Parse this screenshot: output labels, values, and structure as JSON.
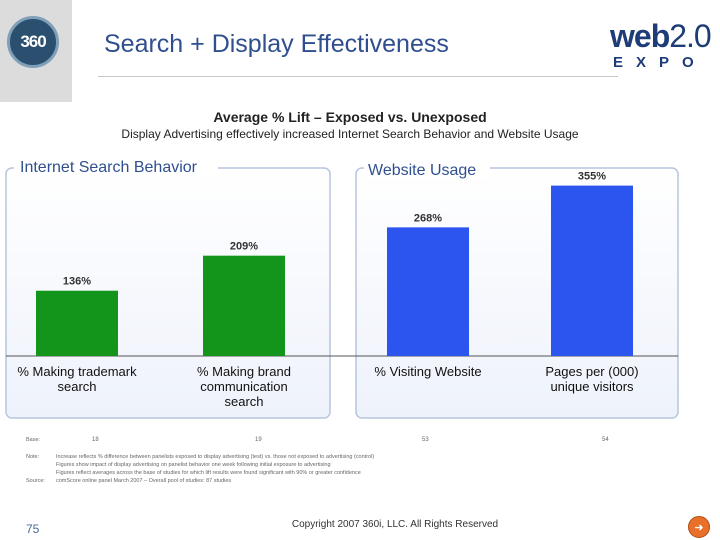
{
  "slide": {
    "title": "Search + Display Effectiveness",
    "page_number": "75",
    "copyright": "Copyright 2007 360i, LLC. All Rights Reserved",
    "logo_left_text": "360",
    "logo_right_line1": "web",
    "logo_right_line1_num": "2.0",
    "logo_right_line2": "EXPO"
  },
  "chart_data": {
    "type": "bar",
    "title": "Average % Lift – Exposed vs. Unexposed",
    "subtitle": "Display Advertising effectively increased Internet Search Behavior and Website Usage",
    "groups": [
      {
        "name": "Internet Search Behavior",
        "color": "#13951b",
        "categories": [
          "% Making trademark search",
          "% Making brand communication search"
        ],
        "values": [
          136,
          209
        ],
        "value_labels": [
          "136%",
          "209%"
        ]
      },
      {
        "name": "Website Usage",
        "color": "#2b55ee",
        "categories": [
          "% Visiting Website",
          "Pages per (000) unique visitors"
        ],
        "values": [
          268,
          355
        ],
        "value_labels": [
          "268%",
          "355%"
        ]
      }
    ],
    "ylim": [
      0,
      375
    ],
    "grid": false,
    "legend": "none"
  },
  "footnotes": {
    "base_label": "Base:",
    "base_values": [
      "18",
      "19",
      "53",
      "54"
    ],
    "note_label": "Note:",
    "note_lines": [
      "Increase reflects % difference between panelists exposed to display advertising (test) vs. those not exposed to advertising (control)",
      "Figures show impact of display advertising on panelist behavior one week following initial exposure to advertising",
      "Figures reflect averages across the base of studies for which lift results were found significant with 90% or greater confidence"
    ],
    "source_label": "Source:",
    "source_text": "comScore online panel March 2007 – Overall pool of studies: 87 studies"
  }
}
